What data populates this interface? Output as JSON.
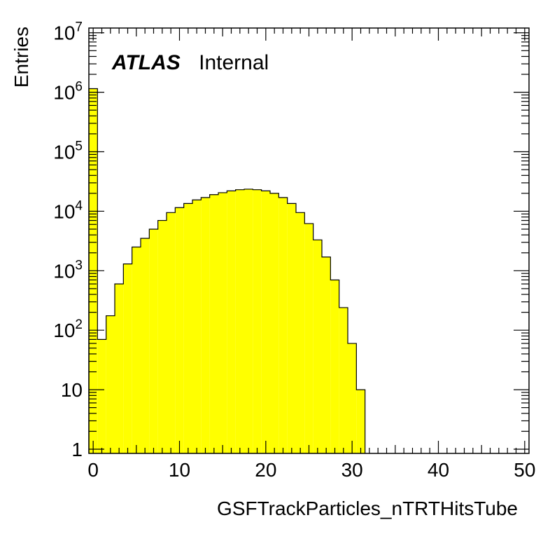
{
  "chart_data": {
    "type": "bar",
    "title": "",
    "xlabel": "GSFTrackParticles_nTRTHitsTube",
    "ylabel": "Entries",
    "annotation_bold": "ATLAS",
    "annotation_text": "Internal",
    "fill_color": "#ffff00",
    "line_color": "#000000",
    "xlim": [
      -0.5,
      50.5
    ],
    "ylim": [
      0.85,
      12000000
    ],
    "log_y": true,
    "grid": false,
    "x_ticks": [
      0,
      10,
      20,
      30,
      40,
      50
    ],
    "x_tick_labels": [
      "0",
      "10",
      "20",
      "30",
      "40",
      "50"
    ],
    "y_ticks": [
      {
        "value": 1,
        "base": "1",
        "exp": ""
      },
      {
        "value": 10,
        "base": "10",
        "exp": ""
      },
      {
        "value": 100,
        "base": "10",
        "exp": "2"
      },
      {
        "value": 1000,
        "base": "10",
        "exp": "3"
      },
      {
        "value": 10000,
        "base": "10",
        "exp": "4"
      },
      {
        "value": 100000,
        "base": "10",
        "exp": "5"
      },
      {
        "value": 1000000,
        "base": "10",
        "exp": "6"
      },
      {
        "value": 10000000,
        "base": "10",
        "exp": "7"
      }
    ],
    "bins": [
      {
        "x": 0,
        "value": 1150000
      },
      {
        "x": 1,
        "value": 70
      },
      {
        "x": 2,
        "value": 175
      },
      {
        "x": 3,
        "value": 600
      },
      {
        "x": 4,
        "value": 1300
      },
      {
        "x": 5,
        "value": 2500
      },
      {
        "x": 6,
        "value": 3500
      },
      {
        "x": 7,
        "value": 5000
      },
      {
        "x": 8,
        "value": 7000
      },
      {
        "x": 9,
        "value": 9500
      },
      {
        "x": 10,
        "value": 11500
      },
      {
        "x": 11,
        "value": 13500
      },
      {
        "x": 12,
        "value": 15500
      },
      {
        "x": 13,
        "value": 17000
      },
      {
        "x": 14,
        "value": 19000
      },
      {
        "x": 15,
        "value": 20500
      },
      {
        "x": 16,
        "value": 22000
      },
      {
        "x": 17,
        "value": 23000
      },
      {
        "x": 18,
        "value": 23500
      },
      {
        "x": 19,
        "value": 23000
      },
      {
        "x": 20,
        "value": 22000
      },
      {
        "x": 21,
        "value": 20000
      },
      {
        "x": 22,
        "value": 17000
      },
      {
        "x": 23,
        "value": 13500
      },
      {
        "x": 24,
        "value": 9500
      },
      {
        "x": 25,
        "value": 6200
      },
      {
        "x": 26,
        "value": 3300
      },
      {
        "x": 27,
        "value": 1700
      },
      {
        "x": 28,
        "value": 700
      },
      {
        "x": 29,
        "value": 240
      },
      {
        "x": 30,
        "value": 60
      },
      {
        "x": 31,
        "value": 10
      }
    ]
  }
}
